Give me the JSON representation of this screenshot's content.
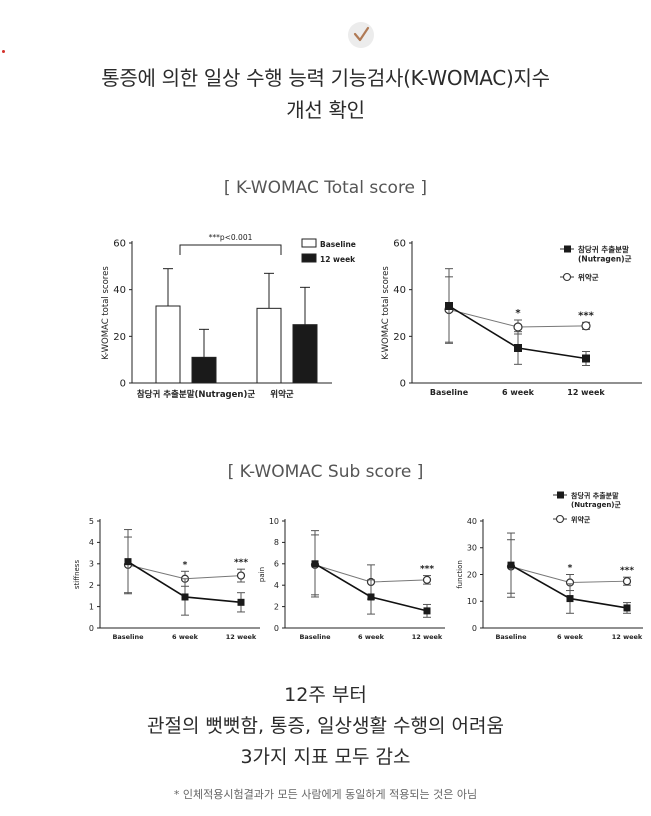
{
  "header": {
    "title_line1": "통증에 의한 일상 수행 능력 기능검사(K-WOMAC)지수",
    "title_line2": "개선 확인",
    "check_icon": "check-icon"
  },
  "section_total_label": "[ K-WOMAC Total score ]",
  "section_sub_label": "[ K-WOMAC Sub score ]",
  "summary": {
    "line1": "12주 부터",
    "line2": "관절의 뻣뻣함, 통증, 일상생활 수행의 어려움",
    "line3": "3가지 지표 모두 감소"
  },
  "footnote": "* 인체적용시험결과가 모든 사람에게 동일하게 적용되는 것은 아님",
  "colors": {
    "nutragen": "#1a1a1a",
    "placebo": "#ffffff",
    "axis": "#222222"
  },
  "chart_data": [
    {
      "type": "bar",
      "ylabel": "K-WOMAC total scores",
      "ylim": [
        0,
        60
      ],
      "yticks": [
        0,
        20,
        40,
        60
      ],
      "categories": [
        "참당귀 추출분말(Nutragen)군",
        "위약군"
      ],
      "series": [
        {
          "name": "Baseline",
          "values": [
            33,
            32
          ],
          "err": [
            16,
            15
          ]
        },
        {
          "name": "12 week",
          "values": [
            11,
            25
          ],
          "err": [
            12,
            16
          ]
        }
      ],
      "annotation": "***p<0.001",
      "legend": "top-right"
    },
    {
      "type": "line",
      "ylabel": "K-WOMAC total scores",
      "ylim": [
        0,
        60
      ],
      "yticks": [
        0,
        20,
        40,
        60
      ],
      "x": [
        "Baseline",
        "6 week",
        "12 week"
      ],
      "series": [
        {
          "name": "참당귀 추출분말 (Nutragen)군",
          "values": [
            33,
            15,
            10.5
          ],
          "err": [
            16,
            7,
            3
          ]
        },
        {
          "name": "위약군",
          "values": [
            31.5,
            24,
            24.5
          ],
          "err": [
            14,
            3,
            1.5
          ]
        }
      ],
      "markers": [
        "",
        "*",
        "***"
      ],
      "legend": "top-right"
    },
    {
      "type": "line",
      "ylabel": "stiffness",
      "ylim": [
        0,
        5
      ],
      "yticks": [
        0,
        1,
        2,
        3,
        4,
        5
      ],
      "x": [
        "Baseline",
        "6 week",
        "12 week"
      ],
      "series": [
        {
          "name": "참당귀 추출분말 (Nutragen)군",
          "values": [
            3.1,
            1.45,
            1.2
          ],
          "err": [
            1.5,
            0.85,
            0.45
          ]
        },
        {
          "name": "위약군",
          "values": [
            2.95,
            2.3,
            2.45
          ],
          "err": [
            1.3,
            0.35,
            0.3
          ]
        }
      ],
      "markers": [
        "",
        "*",
        "***"
      ]
    },
    {
      "type": "line",
      "ylabel": "pain",
      "ylim": [
        0,
        10
      ],
      "yticks": [
        0,
        2,
        4,
        6,
        8,
        10
      ],
      "x": [
        "Baseline",
        "6 week",
        "12 week"
      ],
      "series": [
        {
          "name": "참당귀 추출분말 (Nutragen)군",
          "values": [
            6,
            2.9,
            1.6
          ],
          "err": [
            3.1,
            1.6,
            0.6
          ]
        },
        {
          "name": "위약군",
          "values": [
            5.9,
            4.3,
            4.5
          ],
          "err": [
            2.8,
            1.6,
            0.4
          ]
        }
      ],
      "markers": [
        "",
        "",
        "***"
      ]
    },
    {
      "type": "line",
      "ylabel": "function",
      "ylim": [
        0,
        40
      ],
      "yticks": [
        0,
        10,
        20,
        30,
        40
      ],
      "x": [
        "Baseline",
        "6 week",
        "12 week"
      ],
      "series": [
        {
          "name": "참당귀 추출분말 (Nutragen)군",
          "values": [
            23.5,
            11,
            7.5
          ],
          "err": [
            12,
            5.5,
            2
          ]
        },
        {
          "name": "위약군",
          "values": [
            23,
            17,
            17.5
          ],
          "err": [
            10,
            3,
            1.5
          ]
        }
      ],
      "markers": [
        "",
        "*",
        "***"
      ],
      "legend": "top-right"
    }
  ]
}
